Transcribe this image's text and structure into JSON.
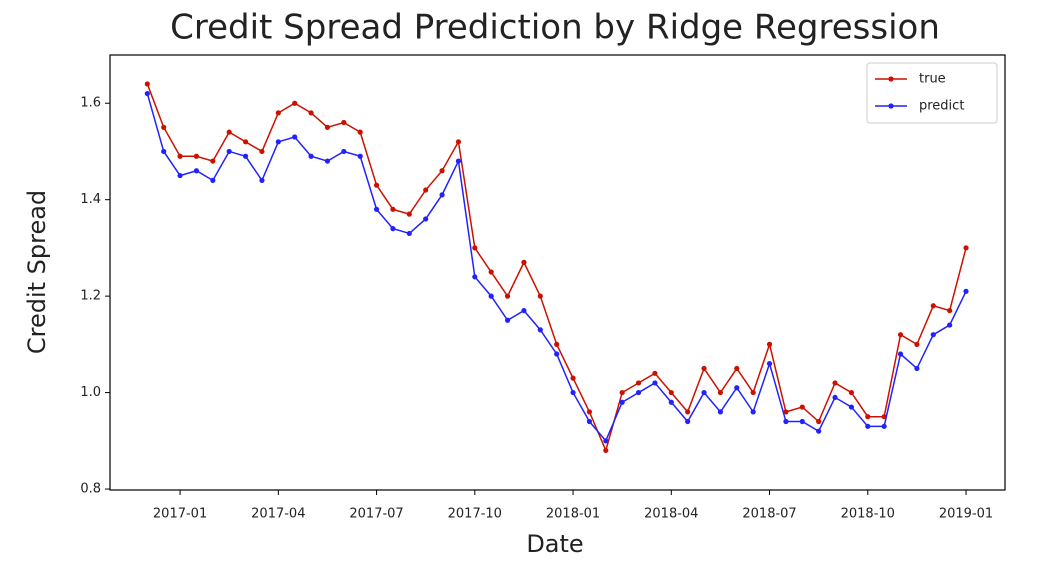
{
  "chart_data": {
    "type": "line",
    "title": "Credit Spread Prediction by Ridge Regression",
    "x_label": "Date",
    "y_label": "Credit Spread",
    "x": [
      -1,
      -0.5,
      0,
      0.5,
      1,
      1.5,
      2,
      2.5,
      3,
      3.5,
      4,
      4.5,
      5,
      5.5,
      6,
      6.5,
      7,
      7.5,
      8,
      8.5,
      9,
      9.5,
      10,
      10.5,
      11,
      11.5,
      12,
      12.5,
      13,
      13.5,
      14,
      14.5,
      15,
      15.5,
      16,
      16.5,
      17,
      17.5,
      18,
      18.5,
      19,
      19.5,
      20,
      20.5,
      21,
      21.5,
      22,
      22.5,
      23,
      23.5,
      24
    ],
    "series": [
      {
        "name": "true",
        "color": "#cc1100",
        "values": [
          1.64,
          1.55,
          1.49,
          1.49,
          1.48,
          1.54,
          1.52,
          1.5,
          1.58,
          1.6,
          1.58,
          1.55,
          1.56,
          1.54,
          1.43,
          1.38,
          1.37,
          1.42,
          1.46,
          1.52,
          1.3,
          1.25,
          1.2,
          1.27,
          1.2,
          1.1,
          1.03,
          0.96,
          0.88,
          1.0,
          1.02,
          1.04,
          1.0,
          0.96,
          1.05,
          1.0,
          1.05,
          1.0,
          1.1,
          0.96,
          0.97,
          0.94,
          1.02,
          1.0,
          0.95,
          0.95,
          1.12,
          1.1,
          1.18,
          1.17,
          1.3
        ]
      },
      {
        "name": "predict",
        "color": "#2222ff",
        "values": [
          1.62,
          1.5,
          1.45,
          1.46,
          1.44,
          1.5,
          1.49,
          1.44,
          1.52,
          1.53,
          1.49,
          1.48,
          1.5,
          1.49,
          1.38,
          1.34,
          1.33,
          1.36,
          1.41,
          1.48,
          1.24,
          1.2,
          1.15,
          1.17,
          1.13,
          1.08,
          1.0,
          0.94,
          0.9,
          0.98,
          1.0,
          1.02,
          0.98,
          0.94,
          1.0,
          0.96,
          1.01,
          0.96,
          1.06,
          0.94,
          0.94,
          0.92,
          0.99,
          0.97,
          0.93,
          0.93,
          1.08,
          1.05,
          1.12,
          1.14,
          1.21
        ]
      }
    ],
    "xlim": [
      -2.14,
      25.19
    ],
    "xticks": [
      {
        "value": 0,
        "label": "2017-01"
      },
      {
        "value": 3,
        "label": "2017-04"
      },
      {
        "value": 6,
        "label": "2017-07"
      },
      {
        "value": 9,
        "label": "2017-10"
      },
      {
        "value": 12,
        "label": "2018-01"
      },
      {
        "value": 15,
        "label": "2018-04"
      },
      {
        "value": 18,
        "label": "2018-07"
      },
      {
        "value": 21,
        "label": "2018-10"
      },
      {
        "value": 24,
        "label": "2019-01"
      }
    ],
    "ylim": [
      0.798,
      1.7
    ],
    "yticks": [
      {
        "value": 0.8,
        "label": "0.8"
      },
      {
        "value": 1.0,
        "label": "1.0"
      },
      {
        "value": 1.2,
        "label": "1.2"
      },
      {
        "value": 1.4,
        "label": "1.4"
      },
      {
        "value": 1.6,
        "label": "1.6"
      }
    ],
    "legend": "upper right"
  }
}
